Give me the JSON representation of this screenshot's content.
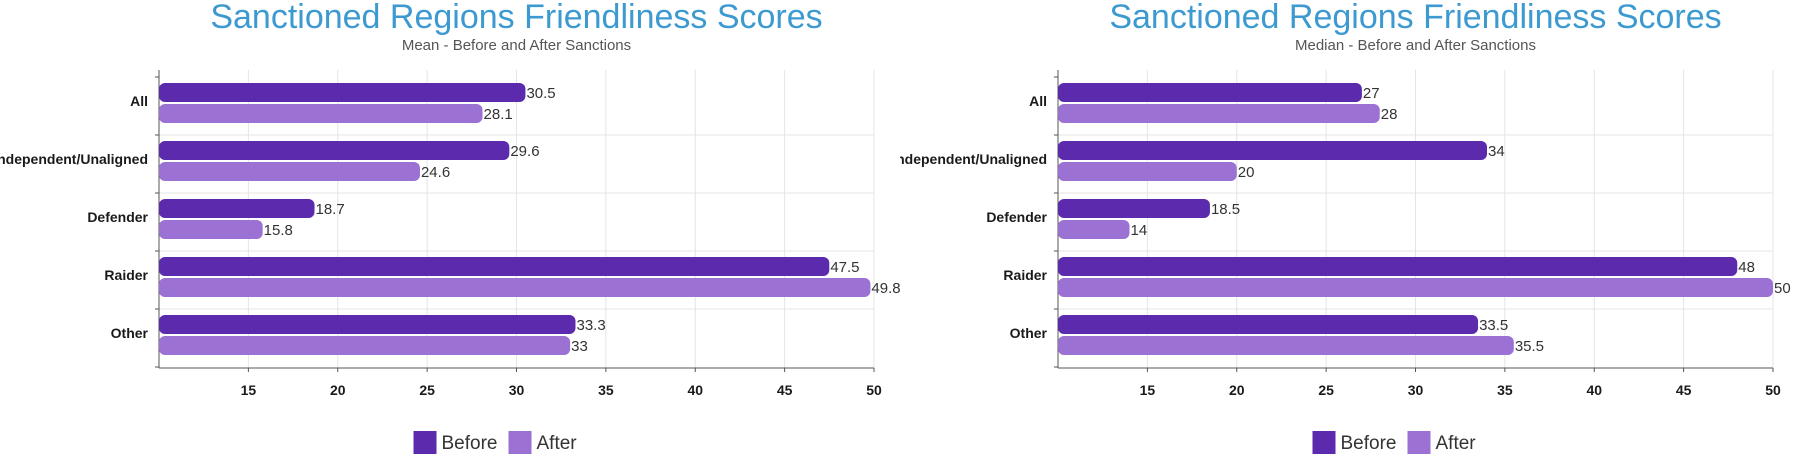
{
  "colors": {
    "before": "#5b2aad",
    "after": "#9b72d3",
    "title": "#3d9ad1",
    "grid": "#e4e4e4",
    "axis": "#555555"
  },
  "chart_data": [
    {
      "type": "bar",
      "orientation": "horizontal",
      "title": "Sanctioned Regions Friendliness Scores",
      "subtitle": "Mean - Before and After Sanctions",
      "categories": [
        "All",
        "Independent/Unaligned",
        "Defender",
        "Raider",
        "Other"
      ],
      "series": [
        {
          "name": "Before",
          "color": "#5b2aad",
          "values": [
            30.5,
            29.6,
            18.7,
            47.5,
            33.3
          ]
        },
        {
          "name": "After",
          "color": "#9b72d3",
          "values": [
            28.1,
            24.6,
            15.8,
            49.8,
            33
          ]
        }
      ],
      "xlim": [
        10,
        50
      ],
      "xticks": [
        15,
        20,
        25,
        30,
        35,
        40,
        45,
        50
      ],
      "grid": true,
      "legend": "bottom-center"
    },
    {
      "type": "bar",
      "orientation": "horizontal",
      "title": "Sanctioned Regions Friendliness Scores",
      "subtitle": "Median - Before and After Sanctions",
      "categories": [
        "All",
        "Independent/Unaligned",
        "Defender",
        "Raider",
        "Other"
      ],
      "series": [
        {
          "name": "Before",
          "color": "#5b2aad",
          "values": [
            27,
            34,
            18.5,
            48,
            33.5
          ]
        },
        {
          "name": "After",
          "color": "#9b72d3",
          "values": [
            28,
            20,
            14,
            50,
            35.5
          ]
        }
      ],
      "xlim": [
        10,
        50
      ],
      "xticks": [
        15,
        20,
        25,
        30,
        35,
        40,
        45,
        50
      ],
      "grid": true,
      "legend": "bottom-center"
    }
  ]
}
